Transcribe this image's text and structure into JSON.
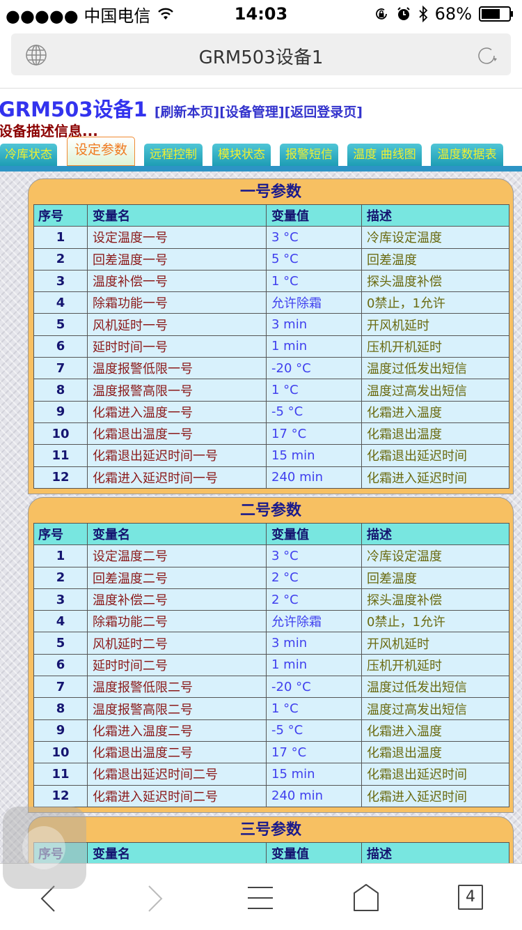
{
  "status_bar": {
    "carrier": "●●●●● 中国电信",
    "time": "14:03",
    "battery": "68%"
  },
  "browser": {
    "url_title": "GRM503设备1",
    "tab_count": "4"
  },
  "page": {
    "title": "GRM503设备1",
    "links": [
      "[刷新本页]",
      "[设备管理]",
      "[返回登录页]"
    ],
    "description": "设备描述信息..."
  },
  "tabs": [
    {
      "label": "冷库状态"
    },
    {
      "label": "设定参数",
      "active": true
    },
    {
      "label": "远程控制"
    },
    {
      "label": "模块状态"
    },
    {
      "label": "报警短信"
    },
    {
      "label": "温度 曲线图"
    },
    {
      "label": "温度数据表"
    }
  ],
  "table_headers": [
    "序号",
    "变量名",
    "变量值",
    "描述"
  ],
  "panels": [
    {
      "title": "一号参数",
      "rows": [
        [
          "1",
          "设定温度一号",
          "3 °C",
          "冷库设定温度"
        ],
        [
          "2",
          "回差温度一号",
          "5 °C",
          "回差温度"
        ],
        [
          "3",
          "温度补偿一号",
          "1 °C",
          "探头温度补偿"
        ],
        [
          "4",
          "除霜功能一号",
          "允许除霜",
          "0禁止，1允许"
        ],
        [
          "5",
          "风机延时一号",
          "3 min",
          "开风机延时"
        ],
        [
          "6",
          "延时时间一号",
          "1 min",
          "压机开机延时"
        ],
        [
          "7",
          "温度报警低限一号",
          "-20 °C",
          "温度过低发出短信"
        ],
        [
          "8",
          "温度报警高限一号",
          "1 °C",
          "温度过高发出短信"
        ],
        [
          "9",
          "化霜进入温度一号",
          "-5 °C",
          "化霜进入温度"
        ],
        [
          "10",
          "化霜退出温度一号",
          "17 °C",
          "化霜退出温度"
        ],
        [
          "11",
          "化霜退出延迟时间一号",
          "15 min",
          "化霜退出延迟时间"
        ],
        [
          "12",
          "化霜进入延迟时间一号",
          "240 min",
          "化霜进入延迟时间"
        ]
      ]
    },
    {
      "title": "二号参数",
      "rows": [
        [
          "1",
          "设定温度二号",
          "3 °C",
          "冷库设定温度"
        ],
        [
          "2",
          "回差温度二号",
          "2 °C",
          "回差温度"
        ],
        [
          "3",
          "温度补偿二号",
          "2 °C",
          "探头温度补偿"
        ],
        [
          "4",
          "除霜功能二号",
          "允许除霜",
          "0禁止，1允许"
        ],
        [
          "5",
          "风机延时二号",
          "3 min",
          "开风机延时"
        ],
        [
          "6",
          "延时时间二号",
          "1 min",
          "压机开机延时"
        ],
        [
          "7",
          "温度报警低限二号",
          "-20 °C",
          "温度过低发出短信"
        ],
        [
          "8",
          "温度报警高限二号",
          "1 °C",
          "温度过高发出短信"
        ],
        [
          "9",
          "化霜进入温度二号",
          "-5 °C",
          "化霜进入温度"
        ],
        [
          "10",
          "化霜退出温度二号",
          "17 °C",
          "化霜退出温度"
        ],
        [
          "11",
          "化霜退出延迟时间二号",
          "15 min",
          "化霜退出延迟时间"
        ],
        [
          "12",
          "化霜进入延迟时间二号",
          "240 min",
          "化霜进入延迟时间"
        ]
      ]
    },
    {
      "title": "三号参数",
      "rows": []
    }
  ]
}
